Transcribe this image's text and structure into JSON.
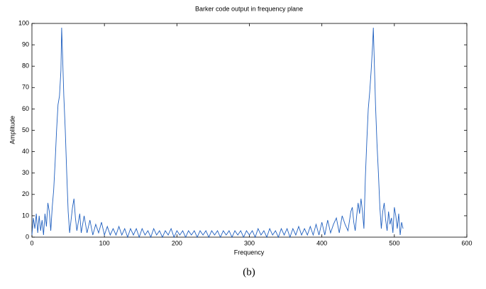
{
  "chart_data": {
    "type": "line",
    "title": "Barker code output in frequency plane",
    "x_label": "Frequency",
    "y_label": "Amplitude",
    "caption": "(b)",
    "color": "#1f5fbf",
    "xlim": [
      0,
      600
    ],
    "xticks": [
      0,
      100,
      200,
      300,
      400,
      500,
      600
    ],
    "ylim": [
      0,
      100
    ],
    "yticks": [
      0,
      10,
      20,
      30,
      40,
      50,
      60,
      70,
      80,
      90,
      100
    ],
    "x": [
      0,
      2,
      4,
      6,
      8,
      10,
      12,
      14,
      16,
      18,
      20,
      22,
      24,
      26,
      28,
      30,
      32,
      34,
      36,
      38,
      40,
      41,
      42,
      44,
      46,
      48,
      50,
      52,
      54,
      56,
      58,
      60,
      62,
      64,
      66,
      68,
      70,
      72,
      76,
      80,
      84,
      88,
      92,
      96,
      100,
      104,
      108,
      112,
      116,
      120,
      124,
      128,
      132,
      136,
      140,
      144,
      148,
      152,
      156,
      160,
      164,
      168,
      172,
      176,
      180,
      184,
      188,
      192,
      196,
      200,
      204,
      208,
      212,
      216,
      220,
      224,
      228,
      232,
      236,
      240,
      244,
      248,
      252,
      256,
      260,
      264,
      268,
      272,
      276,
      280,
      284,
      288,
      292,
      296,
      300,
      304,
      308,
      312,
      316,
      320,
      324,
      328,
      332,
      336,
      340,
      344,
      348,
      352,
      356,
      360,
      364,
      368,
      372,
      376,
      380,
      384,
      388,
      392,
      396,
      400,
      404,
      408,
      412,
      416,
      420,
      424,
      428,
      432,
      436,
      440,
      442,
      444,
      446,
      448,
      450,
      452,
      454,
      456,
      458,
      460,
      462,
      464,
      466,
      468,
      470,
      471,
      472,
      474,
      476,
      478,
      480,
      482,
      484,
      486,
      488,
      490,
      492,
      494,
      496,
      498,
      500,
      502,
      504,
      506,
      508,
      510,
      512
    ],
    "values": [
      1,
      9,
      4,
      11,
      2,
      10,
      3,
      8,
      1,
      11,
      5,
      16,
      12,
      3,
      14,
      22,
      35,
      50,
      62,
      66,
      78,
      98,
      88,
      66,
      50,
      30,
      12,
      2,
      8,
      14,
      18,
      9,
      3,
      7,
      11,
      2,
      6,
      10,
      2,
      8,
      1,
      6,
      2,
      7,
      1,
      5,
      1,
      4,
      1,
      5,
      1,
      4,
      0,
      4,
      1,
      4,
      0,
      4,
      1,
      3,
      0,
      4,
      1,
      3,
      0,
      3,
      1,
      4,
      0,
      3,
      1,
      3,
      0,
      3,
      1,
      3,
      0,
      3,
      1,
      3,
      0,
      3,
      1,
      3,
      0,
      3,
      1,
      3,
      0,
      3,
      1,
      3,
      0,
      3,
      1,
      3,
      0,
      4,
      1,
      3,
      0,
      4,
      1,
      3,
      0,
      4,
      1,
      4,
      0,
      4,
      1,
      5,
      1,
      4,
      1,
      5,
      1,
      6,
      1,
      7,
      1,
      8,
      2,
      6,
      9,
      2,
      10,
      6,
      3,
      12,
      14,
      7,
      3,
      10,
      16,
      11,
      18,
      12,
      4,
      28,
      45,
      60,
      68,
      78,
      90,
      98,
      86,
      62,
      44,
      30,
      14,
      4,
      12,
      16,
      8,
      3,
      12,
      6,
      9,
      2,
      14,
      10,
      4,
      11,
      1,
      7,
      4
    ]
  }
}
